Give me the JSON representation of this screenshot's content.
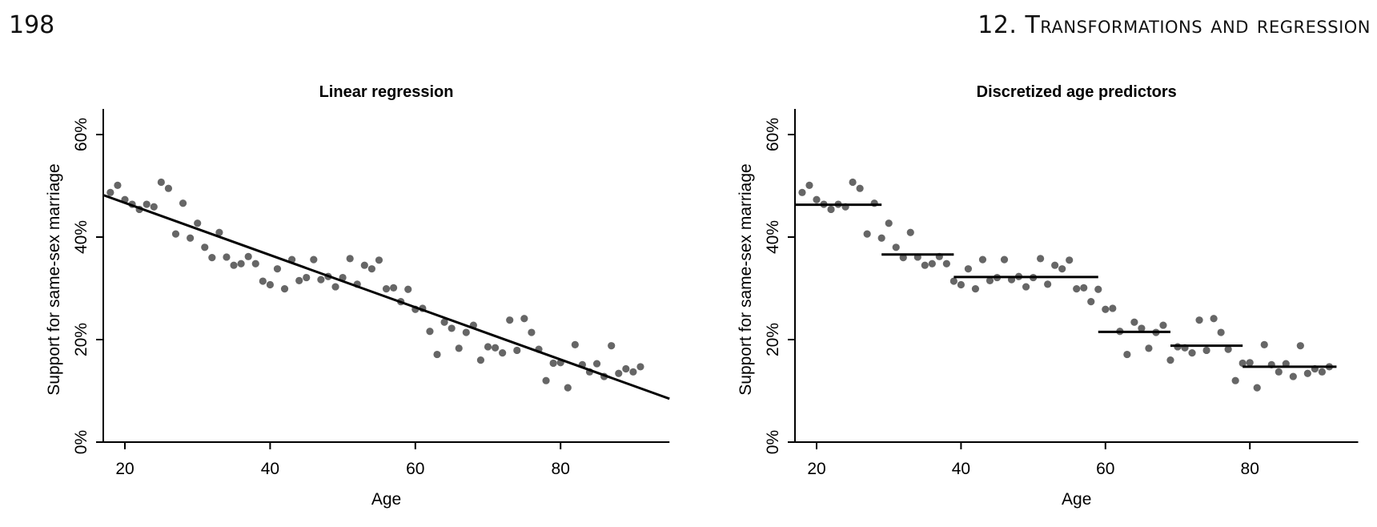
{
  "header": {
    "page_number": "198",
    "running_title": "12. Transformations and regression"
  },
  "colors": {
    "points": "#666666",
    "lines": "#000000"
  },
  "chart_data": [
    {
      "type": "scatter",
      "title": "Linear regression",
      "xlabel": "Age",
      "ylabel": "Support for same-sex marriage",
      "xlim": [
        17,
        95
      ],
      "ylim": [
        0,
        65
      ],
      "xticks": [
        20,
        40,
        60,
        80
      ],
      "xtick_labels": [
        "20",
        "40",
        "60",
        "80"
      ],
      "yticks": [
        0,
        20,
        40,
        60
      ],
      "ytick_labels": [
        "0%",
        "20%",
        "40%",
        "60%"
      ],
      "grid": false,
      "x": [
        18,
        19,
        20,
        21,
        22,
        23,
        24,
        25,
        26,
        27,
        28,
        29,
        30,
        31,
        32,
        33,
        34,
        35,
        36,
        37,
        38,
        39,
        40,
        41,
        42,
        43,
        44,
        45,
        46,
        47,
        48,
        49,
        50,
        51,
        52,
        53,
        54,
        55,
        56,
        57,
        58,
        59,
        60,
        61,
        62,
        63,
        64,
        65,
        66,
        67,
        68,
        69,
        70,
        71,
        72,
        73,
        74,
        75,
        76,
        77,
        78,
        79,
        80,
        81,
        82,
        83,
        84,
        85,
        86,
        87,
        88,
        89,
        90,
        91
      ],
      "y": [
        48.7,
        50.1,
        47.3,
        46.4,
        45.4,
        46.4,
        45.9,
        50.7,
        49.5,
        40.6,
        46.6,
        39.8,
        42.7,
        38.0,
        36.0,
        40.9,
        36.1,
        34.5,
        34.8,
        36.2,
        34.8,
        31.4,
        30.7,
        33.8,
        29.9,
        35.6,
        31.5,
        32.1,
        35.6,
        31.7,
        32.3,
        30.3,
        32.1,
        35.8,
        30.8,
        34.5,
        33.8,
        35.5,
        29.9,
        30.1,
        27.4,
        29.8,
        25.9,
        26.1,
        21.6,
        17.1,
        23.4,
        22.2,
        18.3,
        21.4,
        22.8,
        16.0,
        18.6,
        18.4,
        17.4,
        23.8,
        17.9,
        24.1,
        21.4,
        18.1,
        12.0,
        15.4,
        15.5,
        10.6,
        19.0,
        15.1,
        13.7,
        15.3,
        12.8,
        18.8,
        13.4,
        14.3,
        13.7,
        14.7
      ],
      "fit": {
        "type": "linear",
        "intercept": 56.87,
        "slope": -0.5096
      }
    },
    {
      "type": "scatter",
      "title": "Discretized age predictors",
      "xlabel": "Age",
      "ylabel": "Support for same-sex marriage",
      "xlim": [
        17,
        95
      ],
      "ylim": [
        0,
        65
      ],
      "xticks": [
        20,
        40,
        60,
        80
      ],
      "xtick_labels": [
        "20",
        "40",
        "60",
        "80"
      ],
      "yticks": [
        0,
        20,
        40,
        60
      ],
      "ytick_labels": [
        "0%",
        "20%",
        "40%",
        "60%"
      ],
      "grid": false,
      "same_points_as": "Linear regression",
      "steps": [
        {
          "from": 17,
          "to": 29,
          "value": 46.3
        },
        {
          "from": 29,
          "to": 39,
          "value": 36.6
        },
        {
          "from": 39,
          "to": 59,
          "value": 32.2
        },
        {
          "from": 59,
          "to": 69,
          "value": 21.5
        },
        {
          "from": 69,
          "to": 79,
          "value": 18.8
        },
        {
          "from": 79,
          "to": 92,
          "value": 14.7
        }
      ]
    }
  ]
}
